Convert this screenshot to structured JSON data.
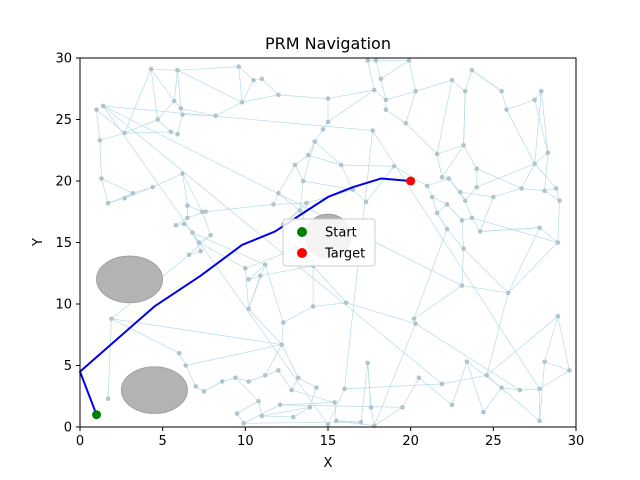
{
  "chart_data": {
    "type": "scatter",
    "title": "PRM Navigation",
    "xlabel": "X",
    "ylabel": "Y",
    "xlim": [
      0,
      30
    ],
    "ylim": [
      0,
      30
    ],
    "xticks": [
      "0",
      "5",
      "10",
      "15",
      "20",
      "25",
      "30"
    ],
    "yticks": [
      "0",
      "5",
      "10",
      "15",
      "20",
      "25",
      "30"
    ],
    "grid": false,
    "legend_position": "center",
    "colors": {
      "roadmap_edge": "#add8e6",
      "roadmap_node": "#b0c4cc",
      "obstacle": "#b3b3b3",
      "path": "#0000ee",
      "start": "#008000",
      "target": "#ff0000"
    },
    "obstacles": [
      {
        "cx": 3.0,
        "cy": 12.0,
        "rx": 2.0,
        "ry": 1.9
      },
      {
        "cx": 4.5,
        "cy": 3.0,
        "rx": 2.0,
        "ry": 1.9
      },
      {
        "cx": 15.0,
        "cy": 15.5,
        "rx": 1.4,
        "ry": 1.8
      }
    ],
    "roadmap_nodes": [
      [
        1.0,
        25.8
      ],
      [
        1.2,
        23.3
      ],
      [
        1.3,
        20.2
      ],
      [
        1.7,
        18.2
      ],
      [
        2.7,
        23.9
      ],
      [
        3.2,
        19.0
      ],
      [
        2.7,
        18.6
      ],
      [
        4.4,
        19.5
      ],
      [
        4.3,
        29.1
      ],
      [
        4.7,
        25.0
      ],
      [
        5.5,
        24.0
      ],
      [
        5.9,
        23.8
      ],
      [
        5.7,
        26.5
      ],
      [
        5.9,
        29.0
      ],
      [
        6.1,
        25.9
      ],
      [
        6.2,
        25.4
      ],
      [
        8.2,
        25.3
      ],
      [
        9.6,
        29.3
      ],
      [
        9.8,
        26.4
      ],
      [
        10.5,
        28.2
      ],
      [
        11.0,
        28.3
      ],
      [
        12.0,
        27.0
      ],
      [
        12.0,
        19.0
      ],
      [
        13.0,
        21.3
      ],
      [
        6.2,
        20.6
      ],
      [
        6.5,
        18.0
      ],
      [
        7.4,
        17.5
      ],
      [
        7.6,
        17.5
      ],
      [
        6.5,
        17.0
      ],
      [
        5.8,
        16.4
      ],
      [
        6.3,
        16.5
      ],
      [
        6.8,
        15.8
      ],
      [
        7.2,
        15.0
      ],
      [
        7.9,
        15.6
      ],
      [
        6.6,
        14.0
      ],
      [
        7.3,
        14.3
      ],
      [
        11.7,
        18.1
      ],
      [
        13.7,
        18.2
      ],
      [
        12.3,
        16.5
      ],
      [
        13.3,
        17.6
      ],
      [
        13.5,
        20.0
      ],
      [
        13.8,
        22.1
      ],
      [
        14.2,
        23.2
      ],
      [
        14.7,
        24.2
      ],
      [
        15.0,
        24.8
      ],
      [
        15.0,
        26.7
      ],
      [
        15.8,
        21.3
      ],
      [
        16.5,
        19.3
      ],
      [
        17.3,
        18.3
      ],
      [
        17.8,
        27.4
      ],
      [
        17.4,
        29.8
      ],
      [
        17.9,
        29.8
      ],
      [
        18.2,
        28.3
      ],
      [
        18.5,
        26.6
      ],
      [
        18.5,
        25.8
      ],
      [
        19.0,
        21.2
      ],
      [
        19.7,
        24.7
      ],
      [
        19.9,
        29.8
      ],
      [
        20.3,
        27.3
      ],
      [
        21.0,
        19.6
      ],
      [
        21.3,
        18.7
      ],
      [
        21.6,
        22.2
      ],
      [
        21.6,
        17.4
      ],
      [
        21.9,
        20.3
      ],
      [
        22.2,
        18.1
      ],
      [
        22.2,
        16.1
      ],
      [
        22.3,
        20.2
      ],
      [
        22.5,
        28.2
      ],
      [
        23.2,
        22.9
      ],
      [
        23.0,
        19.1
      ],
      [
        23.1,
        16.8
      ],
      [
        23.2,
        14.5
      ],
      [
        23.3,
        18.4
      ],
      [
        23.3,
        27.3
      ],
      [
        23.7,
        29.0
      ],
      [
        23.7,
        17.0
      ],
      [
        24.0,
        21.0
      ],
      [
        24.0,
        19.5
      ],
      [
        24.2,
        15.9
      ],
      [
        25.5,
        27.3
      ],
      [
        25.8,
        25.8
      ],
      [
        25.0,
        18.7
      ],
      [
        26.7,
        19.4
      ],
      [
        27.5,
        26.6
      ],
      [
        27.5,
        21.4
      ],
      [
        27.9,
        27.3
      ],
      [
        28.1,
        19.2
      ],
      [
        27.8,
        16.2
      ],
      [
        28.3,
        22.3
      ],
      [
        28.8,
        19.4
      ],
      [
        28.9,
        15.0
      ],
      [
        29.0,
        18.4
      ],
      [
        25.9,
        10.9
      ],
      [
        23.1,
        11.5
      ],
      [
        20.2,
        8.8
      ],
      [
        20.3,
        8.4
      ],
      [
        16.1,
        10.1
      ],
      [
        14.1,
        9.8
      ],
      [
        12.3,
        8.5
      ],
      [
        12.2,
        6.7
      ],
      [
        10.2,
        9.6
      ],
      [
        10.2,
        12.0
      ],
      [
        11.2,
        13.2
      ],
      [
        10.9,
        12.3
      ],
      [
        10.0,
        12.9
      ],
      [
        13.1,
        14.5
      ],
      [
        14.1,
        13.1
      ],
      [
        1.9,
        8.8
      ],
      [
        1.7,
        2.3
      ],
      [
        6.0,
        6.0
      ],
      [
        6.4,
        5.0
      ],
      [
        7.0,
        3.3
      ],
      [
        7.5,
        2.9
      ],
      [
        8.6,
        3.7
      ],
      [
        9.4,
        4.0
      ],
      [
        10.2,
        3.7
      ],
      [
        11.2,
        4.2
      ],
      [
        12.0,
        4.6
      ],
      [
        12.8,
        3.0
      ],
      [
        13.2,
        4.0
      ],
      [
        14.3,
        3.2
      ],
      [
        13.9,
        1.6
      ],
      [
        12.9,
        0.8
      ],
      [
        11.0,
        0.9
      ],
      [
        10.8,
        2.1
      ],
      [
        9.5,
        1.1
      ],
      [
        9.9,
        0.3
      ],
      [
        12.1,
        1.8
      ],
      [
        15.4,
        2.0
      ],
      [
        15.5,
        0.5
      ],
      [
        17.0,
        0.4
      ],
      [
        17.4,
        5.2
      ],
      [
        17.6,
        1.6
      ],
      [
        17.8,
        0.1
      ],
      [
        19.5,
        1.6
      ],
      [
        20.5,
        4.0
      ],
      [
        22.5,
        1.8
      ],
      [
        23.4,
        5.3
      ],
      [
        24.4,
        1.2
      ],
      [
        25.5,
        3.2
      ],
      [
        26.6,
        3.0
      ],
      [
        27.8,
        3.1
      ],
      [
        27.8,
        0.5
      ],
      [
        28.1,
        5.3
      ],
      [
        29.6,
        4.6
      ],
      [
        28.9,
        9.0
      ],
      [
        24.6,
        4.2
      ],
      [
        21.9,
        3.5
      ],
      [
        16.0,
        3.1
      ],
      [
        15.0,
        0.2
      ],
      [
        1.4,
        26.1
      ],
      [
        17.7,
        24.1
      ]
    ],
    "roadmap_edges": [
      [
        0,
        1
      ],
      [
        0,
        4
      ],
      [
        1,
        2
      ],
      [
        1,
        4
      ],
      [
        2,
        3
      ],
      [
        2,
        5
      ],
      [
        3,
        5
      ],
      [
        3,
        6
      ],
      [
        4,
        9
      ],
      [
        4,
        10
      ],
      [
        4,
        8
      ],
      [
        5,
        7
      ],
      [
        5,
        6
      ],
      [
        6,
        7
      ],
      [
        7,
        24
      ],
      [
        8,
        12
      ],
      [
        8,
        13
      ],
      [
        9,
        12
      ],
      [
        9,
        10
      ],
      [
        10,
        11
      ],
      [
        11,
        15
      ],
      [
        12,
        13
      ],
      [
        12,
        14
      ],
      [
        13,
        14
      ],
      [
        13,
        17
      ],
      [
        14,
        15
      ],
      [
        14,
        16
      ],
      [
        15,
        16
      ],
      [
        16,
        18
      ],
      [
        17,
        18
      ],
      [
        17,
        19
      ],
      [
        18,
        19
      ],
      [
        19,
        20
      ],
      [
        20,
        21
      ],
      [
        21,
        45
      ],
      [
        21,
        18
      ],
      [
        13,
        18
      ],
      [
        8,
        9
      ],
      [
        24,
        25
      ],
      [
        24,
        26
      ],
      [
        25,
        26
      ],
      [
        25,
        28
      ],
      [
        26,
        27
      ],
      [
        27,
        28
      ],
      [
        28,
        29
      ],
      [
        29,
        30
      ],
      [
        30,
        31
      ],
      [
        31,
        32
      ],
      [
        32,
        33
      ],
      [
        33,
        34
      ],
      [
        34,
        35
      ],
      [
        35,
        31
      ],
      [
        26,
        33
      ],
      [
        27,
        36
      ],
      [
        36,
        37
      ],
      [
        37,
        38
      ],
      [
        38,
        39
      ],
      [
        39,
        40
      ],
      [
        40,
        23
      ],
      [
        22,
        23
      ],
      [
        22,
        36
      ],
      [
        23,
        41
      ],
      [
        41,
        42
      ],
      [
        42,
        43
      ],
      [
        43,
        44
      ],
      [
        44,
        45
      ],
      [
        41,
        46
      ],
      [
        46,
        47
      ],
      [
        47,
        48
      ],
      [
        48,
        55
      ],
      [
        55,
        59
      ],
      [
        59,
        60
      ],
      [
        60,
        62
      ],
      [
        62,
        64
      ],
      [
        46,
        55
      ],
      [
        45,
        49
      ],
      [
        49,
        50
      ],
      [
        50,
        51
      ],
      [
        51,
        52
      ],
      [
        52,
        53
      ],
      [
        53,
        54
      ],
      [
        54,
        56
      ],
      [
        56,
        61
      ],
      [
        61,
        63
      ],
      [
        63,
        66
      ],
      [
        66,
        69
      ],
      [
        69,
        72
      ],
      [
        72,
        75
      ],
      [
        75,
        78
      ],
      [
        78,
        81
      ],
      [
        81,
        82
      ],
      [
        82,
        84
      ],
      [
        84,
        88
      ],
      [
        88,
        86
      ],
      [
        86,
        89
      ],
      [
        89,
        91
      ],
      [
        91,
        90
      ],
      [
        90,
        87
      ],
      [
        87,
        78
      ],
      [
        57,
        58
      ],
      [
        58,
        67
      ],
      [
        67,
        73
      ],
      [
        73,
        74
      ],
      [
        74,
        79
      ],
      [
        79,
        80
      ],
      [
        80,
        83
      ],
      [
        83,
        85
      ],
      [
        85,
        88
      ],
      [
        52,
        57
      ],
      [
        58,
        53
      ],
      [
        61,
        68
      ],
      [
        68,
        76
      ],
      [
        76,
        77
      ],
      [
        77,
        72
      ],
      [
        70,
        71
      ],
      [
        71,
        65
      ],
      [
        65,
        62
      ],
      [
        70,
        75
      ],
      [
        64,
        70
      ],
      [
        68,
        73
      ],
      [
        56,
        58
      ],
      [
        71,
        92
      ],
      [
        92,
        93
      ],
      [
        93,
        94
      ],
      [
        94,
        95
      ],
      [
        95,
        96
      ],
      [
        96,
        97
      ],
      [
        97,
        98
      ],
      [
        98,
        99
      ],
      [
        99,
        100
      ],
      [
        100,
        103
      ],
      [
        103,
        101
      ],
      [
        101,
        102
      ],
      [
        102,
        98
      ],
      [
        100,
        104
      ],
      [
        104,
        105
      ],
      [
        105,
        106
      ],
      [
        106,
        97
      ],
      [
        104,
        32
      ],
      [
        105,
        37
      ],
      [
        92,
        90
      ],
      [
        93,
        71
      ],
      [
        94,
        65
      ],
      [
        96,
        106
      ],
      [
        107,
        108
      ],
      [
        107,
        109
      ],
      [
        109,
        110
      ],
      [
        110,
        111
      ],
      [
        111,
        112
      ],
      [
        112,
        113
      ],
      [
        113,
        114
      ],
      [
        114,
        115
      ],
      [
        115,
        116
      ],
      [
        116,
        117
      ],
      [
        117,
        118
      ],
      [
        118,
        119
      ],
      [
        119,
        120
      ],
      [
        120,
        121
      ],
      [
        121,
        122
      ],
      [
        122,
        123
      ],
      [
        123,
        124
      ],
      [
        124,
        125
      ],
      [
        125,
        126
      ],
      [
        126,
        127
      ],
      [
        127,
        128
      ],
      [
        128,
        129
      ],
      [
        129,
        130
      ],
      [
        130,
        131
      ],
      [
        131,
        132
      ],
      [
        132,
        133
      ],
      [
        133,
        134
      ],
      [
        134,
        135
      ],
      [
        135,
        136
      ],
      [
        136,
        137
      ],
      [
        137,
        138
      ],
      [
        138,
        139
      ],
      [
        139,
        140
      ],
      [
        140,
        141
      ],
      [
        141,
        142
      ],
      [
        142,
        143
      ],
      [
        143,
        144
      ],
      [
        144,
        145
      ],
      [
        145,
        146
      ],
      [
        146,
        147
      ],
      [
        147,
        148
      ],
      [
        148,
        149
      ],
      [
        149,
        150
      ],
      [
        150,
        151
      ],
      [
        151,
        152
      ],
      [
        152,
        153
      ],
      [
        153,
        154
      ],
      [
        154,
        93
      ],
      [
        155,
        138
      ],
      [
        156,
        133
      ],
      [
        157,
        131
      ],
      [
        158,
        122
      ],
      [
        119,
        99
      ],
      [
        116,
        99
      ],
      [
        110,
        99
      ],
      [
        133,
        95
      ],
      [
        140,
        95
      ],
      [
        146,
        92
      ],
      [
        153,
        92
      ],
      [
        107,
        99
      ],
      [
        0,
        159
      ],
      [
        159,
        4
      ],
      [
        54,
        160
      ],
      [
        160,
        56
      ],
      [
        160,
        44
      ],
      [
        112,
        113
      ],
      [
        127,
        134
      ],
      [
        118,
        128
      ],
      [
        123,
        121
      ],
      [
        114,
        124
      ],
      [
        115,
        117
      ],
      [
        120,
        157
      ],
      [
        126,
        130
      ],
      [
        131,
        132
      ],
      [
        136,
        156
      ],
      [
        141,
        144
      ],
      [
        142,
        146
      ],
      [
        147,
        150
      ],
      [
        148,
        151
      ],
      [
        152,
        153
      ],
      [
        143,
        145
      ],
      [
        151,
        141
      ],
      [
        150,
        93
      ],
      [
        139,
        137
      ],
      [
        135,
        155
      ],
      [
        129,
        133
      ],
      [
        106,
        103
      ],
      [
        34,
        107
      ],
      [
        31,
        102
      ],
      [
        100,
        102
      ],
      [
        22,
        39
      ],
      [
        37,
        47
      ],
      [
        47,
        40
      ],
      [
        40,
        42
      ],
      [
        42,
        46
      ],
      [
        44,
        49
      ],
      [
        53,
        49
      ],
      [
        57,
        51
      ],
      [
        59,
        66
      ],
      [
        60,
        64
      ],
      [
        62,
        65
      ],
      [
        63,
        68
      ],
      [
        66,
        72
      ],
      [
        69,
        81
      ],
      [
        76,
        82
      ],
      [
        77,
        84
      ],
      [
        78,
        87
      ],
      [
        82,
        86
      ],
      [
        84,
        85
      ],
      [
        83,
        88
      ],
      [
        79,
        74
      ],
      [
        80,
        84
      ],
      [
        86,
        91
      ],
      [
        87,
        92
      ],
      [
        89,
        84
      ],
      [
        90,
        75
      ],
      [
        73,
        68
      ],
      [
        67,
        61
      ]
    ],
    "path": {
      "name": "",
      "x": [
        1.0,
        0.0,
        4.5,
        7.3,
        9.8,
        11.8,
        13.5,
        15.0,
        16.5,
        18.2,
        20.0
      ],
      "y": [
        1.0,
        4.5,
        9.8,
        12.3,
        14.8,
        15.9,
        17.4,
        18.7,
        19.5,
        20.2,
        20.0
      ]
    },
    "markers": [
      {
        "name": "Start",
        "x": 1.0,
        "y": 1.0
      },
      {
        "name": "Target",
        "x": 20.0,
        "y": 20.0
      }
    ],
    "legend": [
      {
        "label": "Start"
      },
      {
        "label": "Target"
      }
    ]
  }
}
